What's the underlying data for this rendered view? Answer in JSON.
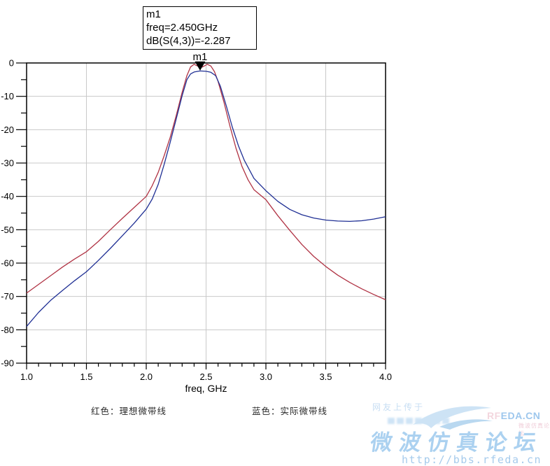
{
  "marker_box": {
    "line1": "m1",
    "line2": "freq=2.450GHz",
    "line3": "dB(S(4,3))=-2.287"
  },
  "legend": {
    "red": "红色：理想微带线",
    "blue": "蓝色：实际微带线"
  },
  "watermark": {
    "upload_note": "网友上传于",
    "site_short_rf": "RF",
    "site_short_rest": "EDA.CN",
    "forum_name": "微波仿真论坛",
    "forum_name_small": "微波仿真论坛",
    "url": "http://bbs.rfeda.cn"
  },
  "colors": {
    "ideal_curve": "#b03344",
    "actual_curve": "#1f2f94",
    "grid": "#c9c9c9",
    "axis": "#000000",
    "marker": "#000000",
    "watermark_blue": "#a8cdee",
    "watermark_pink": "#f2d0da"
  },
  "chart_data": {
    "type": "line",
    "title": "",
    "xlabel": "freq, GHz",
    "ylabel": "",
    "xlim": [
      1.0,
      4.0
    ],
    "ylim": [
      -90,
      0
    ],
    "grid": true,
    "x_major_ticks": [
      1.0,
      1.5,
      2.0,
      2.5,
      3.0,
      3.5,
      4.0
    ],
    "x_tick_labels": [
      "1.0",
      "1.5",
      "2.0",
      "2.5",
      "3.0",
      "3.5",
      "4.0"
    ],
    "x_minor_step": 0.1,
    "y_major_ticks": [
      0,
      -10,
      -20,
      -30,
      -40,
      -50,
      -60,
      -70,
      -80,
      -90
    ],
    "y_tick_labels": [
      "0",
      "-10",
      "-20",
      "-30",
      "-40",
      "-50",
      "-60",
      "-70",
      "-80",
      "-90"
    ],
    "y_minor_step": 5,
    "marker": {
      "label": "m1",
      "x": 2.45,
      "y": -2.287
    },
    "series": [
      {
        "name": "理想微带线 (ideal microstrip)",
        "color": "#b03344",
        "points": [
          [
            1.0,
            -69
          ],
          [
            1.1,
            -66.4
          ],
          [
            1.2,
            -63.8
          ],
          [
            1.3,
            -61.2
          ],
          [
            1.4,
            -58.8
          ],
          [
            1.5,
            -56.6
          ],
          [
            1.6,
            -53.5
          ],
          [
            1.7,
            -50
          ],
          [
            1.8,
            -46.6
          ],
          [
            1.9,
            -43.3
          ],
          [
            2.0,
            -40
          ],
          [
            2.05,
            -36.8
          ],
          [
            2.1,
            -32.8
          ],
          [
            2.15,
            -27.8
          ],
          [
            2.2,
            -22.3
          ],
          [
            2.25,
            -15.8
          ],
          [
            2.3,
            -8.8
          ],
          [
            2.34,
            -3.8
          ],
          [
            2.37,
            -1.2
          ],
          [
            2.4,
            -0.4
          ],
          [
            2.44,
            -1.1
          ],
          [
            2.47,
            -1.2
          ],
          [
            2.51,
            -0.4
          ],
          [
            2.54,
            -0.9
          ],
          [
            2.57,
            -2.6
          ],
          [
            2.6,
            -5.5
          ],
          [
            2.65,
            -11.8
          ],
          [
            2.7,
            -19
          ],
          [
            2.75,
            -25.6
          ],
          [
            2.8,
            -31
          ],
          [
            2.85,
            -35
          ],
          [
            2.9,
            -38
          ],
          [
            3.0,
            -41
          ],
          [
            3.1,
            -45.8
          ],
          [
            3.2,
            -50.2
          ],
          [
            3.3,
            -54.4
          ],
          [
            3.4,
            -58
          ],
          [
            3.5,
            -61
          ],
          [
            3.6,
            -63.6
          ],
          [
            3.7,
            -65.8
          ],
          [
            3.8,
            -67.7
          ],
          [
            3.9,
            -69.4
          ],
          [
            4.0,
            -71
          ]
        ]
      },
      {
        "name": "实际微带线 (actual microstrip)",
        "color": "#1f2f94",
        "points": [
          [
            1.0,
            -79
          ],
          [
            1.1,
            -74.8
          ],
          [
            1.2,
            -71.2
          ],
          [
            1.3,
            -68.2
          ],
          [
            1.4,
            -65.3
          ],
          [
            1.5,
            -62.6
          ],
          [
            1.6,
            -59.2
          ],
          [
            1.7,
            -55.6
          ],
          [
            1.8,
            -51.8
          ],
          [
            1.9,
            -48
          ],
          [
            2.0,
            -43.8
          ],
          [
            2.05,
            -40.8
          ],
          [
            2.1,
            -36.4
          ],
          [
            2.15,
            -30.4
          ],
          [
            2.2,
            -23.8
          ],
          [
            2.25,
            -16.8
          ],
          [
            2.3,
            -9.8
          ],
          [
            2.34,
            -5
          ],
          [
            2.37,
            -3.3
          ],
          [
            2.4,
            -2.7
          ],
          [
            2.45,
            -2.4
          ],
          [
            2.5,
            -2.5
          ],
          [
            2.54,
            -2.8
          ],
          [
            2.58,
            -3.8
          ],
          [
            2.62,
            -7
          ],
          [
            2.67,
            -13
          ],
          [
            2.72,
            -19.3
          ],
          [
            2.77,
            -24.8
          ],
          [
            2.82,
            -29.2
          ],
          [
            2.9,
            -34.6
          ],
          [
            3.0,
            -38.3
          ],
          [
            3.1,
            -41.5
          ],
          [
            3.2,
            -43.9
          ],
          [
            3.3,
            -45.5
          ],
          [
            3.4,
            -46.5
          ],
          [
            3.5,
            -47.1
          ],
          [
            3.6,
            -47.4
          ],
          [
            3.7,
            -47.5
          ],
          [
            3.8,
            -47.3
          ],
          [
            3.9,
            -46.8
          ],
          [
            4.0,
            -46.1
          ]
        ]
      }
    ]
  }
}
